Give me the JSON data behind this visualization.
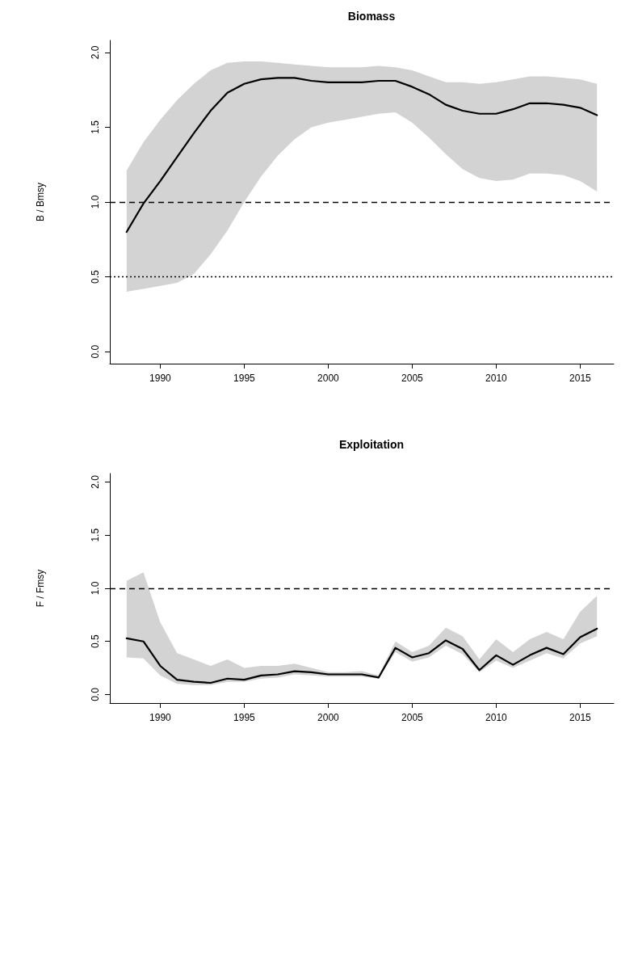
{
  "chart_data": [
    {
      "type": "line",
      "title": "Biomass",
      "ylabel": "B / Bmsy",
      "x": [
        1988,
        1989,
        1990,
        1991,
        1992,
        1993,
        1994,
        1995,
        1996,
        1997,
        1998,
        1999,
        2000,
        2001,
        2002,
        2003,
        2004,
        2005,
        2006,
        2007,
        2008,
        2009,
        2010,
        2011,
        2012,
        2013,
        2014,
        2015,
        2016
      ],
      "series": [
        {
          "color": "#000000",
          "values": [
            0.8,
            0.99,
            1.14,
            1.3,
            1.46,
            1.61,
            1.73,
            1.79,
            1.82,
            1.83,
            1.83,
            1.81,
            1.8,
            1.8,
            1.8,
            1.81,
            1.81,
            1.77,
            1.72,
            1.65,
            1.61,
            1.59,
            1.59,
            1.62,
            1.66,
            1.66,
            1.65,
            1.63,
            1.58
          ],
          "upper": [
            1.21,
            1.4,
            1.55,
            1.68,
            1.79,
            1.88,
            1.93,
            1.94,
            1.94,
            1.93,
            1.92,
            1.91,
            1.9,
            1.9,
            1.9,
            1.91,
            1.9,
            1.88,
            1.84,
            1.8,
            1.8,
            1.79,
            1.8,
            1.82,
            1.84,
            1.84,
            1.83,
            1.82,
            1.79
          ],
          "lower": [
            0.4,
            0.42,
            0.44,
            0.46,
            0.52,
            0.65,
            0.81,
            1.0,
            1.17,
            1.31,
            1.42,
            1.5,
            1.53,
            1.55,
            1.57,
            1.59,
            1.6,
            1.53,
            1.43,
            1.32,
            1.22,
            1.16,
            1.14,
            1.15,
            1.19,
            1.19,
            1.18,
            1.14,
            1.07
          ]
        }
      ],
      "ref_lines": [
        {
          "axis": "y",
          "value": 1.0,
          "line_style": "dashed",
          "color": "#000000"
        },
        {
          "axis": "y",
          "value": 0.5,
          "line_style": "dotted",
          "color": "#000000"
        }
      ],
      "xlim": [
        1987,
        2017
      ],
      "xticks": [
        1990,
        1995,
        2000,
        2005,
        2010,
        2015
      ],
      "ylim": [
        -0.08,
        2.08
      ],
      "yticks": [
        {
          "value": 0,
          "label": "0.0"
        },
        {
          "value": 0.5,
          "label": "0.5"
        },
        {
          "value": 1,
          "label": "1.0"
        },
        {
          "value": 1.5,
          "label": "1.5"
        },
        {
          "value": 2,
          "label": "2.0"
        }
      ],
      "grid": false,
      "marker": "none",
      "line_style": "solid"
    },
    {
      "type": "line",
      "title": "Exploitation",
      "ylabel": "F / Fmsy",
      "x": [
        1988,
        1989,
        1990,
        1991,
        1992,
        1993,
        1994,
        1995,
        1996,
        1997,
        1998,
        1999,
        2000,
        2001,
        2002,
        2003,
        2004,
        2005,
        2006,
        2007,
        2008,
        2009,
        2010,
        2011,
        2012,
        2013,
        2014,
        2015,
        2016
      ],
      "series": [
        {
          "color": "#000000",
          "values": [
            0.53,
            0.5,
            0.27,
            0.14,
            0.12,
            0.11,
            0.15,
            0.14,
            0.18,
            0.19,
            0.22,
            0.21,
            0.19,
            0.19,
            0.19,
            0.16,
            0.44,
            0.35,
            0.39,
            0.51,
            0.43,
            0.23,
            0.37,
            0.28,
            0.37,
            0.44,
            0.38,
            0.54,
            0.62
          ],
          "upper": [
            1.07,
            1.15,
            0.68,
            0.39,
            0.33,
            0.27,
            0.33,
            0.25,
            0.27,
            0.27,
            0.29,
            0.25,
            0.21,
            0.21,
            0.22,
            0.18,
            0.5,
            0.4,
            0.46,
            0.63,
            0.55,
            0.33,
            0.52,
            0.4,
            0.52,
            0.59,
            0.52,
            0.78,
            0.93
          ],
          "lower": [
            0.35,
            0.34,
            0.18,
            0.1,
            0.09,
            0.09,
            0.12,
            0.12,
            0.15,
            0.16,
            0.19,
            0.18,
            0.17,
            0.17,
            0.17,
            0.15,
            0.4,
            0.31,
            0.35,
            0.46,
            0.38,
            0.21,
            0.32,
            0.25,
            0.32,
            0.39,
            0.34,
            0.48,
            0.55
          ]
        }
      ],
      "ref_lines": [
        {
          "axis": "y",
          "value": 1.0,
          "line_style": "dashed",
          "color": "#000000"
        }
      ],
      "xlim": [
        1987,
        2017
      ],
      "xticks": [
        1990,
        1995,
        2000,
        2005,
        2010,
        2015
      ],
      "ylim": [
        -0.08,
        2.08
      ],
      "yticks": [
        {
          "value": 0,
          "label": "0.0"
        },
        {
          "value": 0.5,
          "label": "0.5"
        },
        {
          "value": 1,
          "label": "1.0"
        },
        {
          "value": 1.5,
          "label": "1.5"
        },
        {
          "value": 2,
          "label": "2.0"
        }
      ],
      "grid": false,
      "marker": "none",
      "line_style": "solid"
    }
  ]
}
